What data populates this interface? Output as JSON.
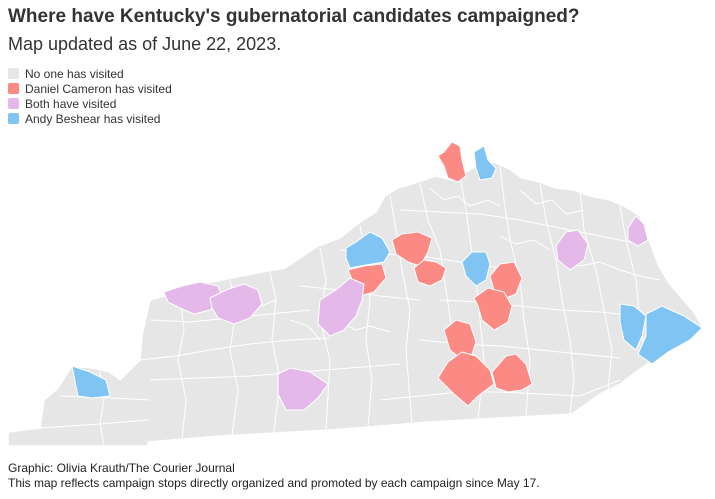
{
  "title": "Where have Kentucky's gubernatorial candidates campaigned?",
  "subtitle": "Map updated as of June 22, 2023.",
  "legend": [
    {
      "key": "none",
      "label": "No one has visited",
      "color": "#e6e6e6"
    },
    {
      "key": "cameron",
      "label": "Daniel Cameron has visited",
      "color": "#fb8a84"
    },
    {
      "key": "both",
      "label": "Both have visited",
      "color": "#e4b9ea"
    },
    {
      "key": "beshear",
      "label": "Andy Beshear has visited",
      "color": "#7fc4f2"
    }
  ],
  "map": {
    "state": "Kentucky",
    "county_status": [
      {
        "status": "cameron"
      },
      {
        "status": "beshear"
      },
      {
        "status": "beshear"
      },
      {
        "status": "cameron"
      },
      {
        "status": "cameron"
      },
      {
        "status": "cameron"
      },
      {
        "status": "beshear"
      },
      {
        "status": "cameron"
      },
      {
        "status": "cameron"
      },
      {
        "status": "cameron"
      },
      {
        "status": "cameron"
      },
      {
        "status": "cameron"
      },
      {
        "status": "both"
      },
      {
        "status": "both"
      },
      {
        "status": "both"
      },
      {
        "status": "both"
      },
      {
        "status": "both"
      },
      {
        "status": "both"
      },
      {
        "status": "beshear"
      },
      {
        "status": "beshear"
      },
      {
        "status": "beshear"
      }
    ]
  },
  "footer": {
    "credit": "Graphic: Olivia Krauth/The Courier Journal",
    "note": "This map reflects campaign stops directly organized and promoted by each campaign since May 17."
  }
}
